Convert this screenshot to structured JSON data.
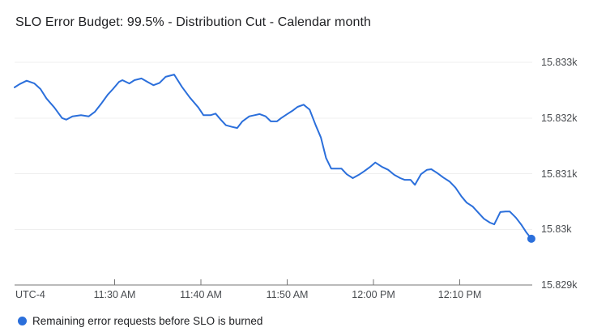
{
  "title": "SLO Error Budget: 99.5% - Distribution Cut - Calendar month",
  "legend": {
    "label": "Remaining error requests before SLO is burned",
    "marker_color": "#2b6fdb"
  },
  "colors": {
    "accent": "#2b6fdb",
    "grid": "#efefef",
    "axis": "#757575",
    "tick_label": "#494c50",
    "title_text": "#202124",
    "background": "#ffffff"
  },
  "chart_data": {
    "type": "line",
    "title": "SLO Error Budget: 99.5% - Distribution Cut - Calendar month",
    "grid": true,
    "legend_position": "bottom-left",
    "x_axis": {
      "corner_label": "UTC-4",
      "unit": "minute_of_day",
      "range": [
        678.4,
        738.4
      ],
      "ticks": [
        {
          "t": 690,
          "label": "11:30 AM"
        },
        {
          "t": 700,
          "label": "11:40 AM"
        },
        {
          "t": 710,
          "label": "11:50 AM"
        },
        {
          "t": 720,
          "label": "12:00 PM"
        },
        {
          "t": 730,
          "label": "12:10 PM"
        }
      ]
    },
    "y_axis": {
      "range": [
        15829,
        15833
      ],
      "ticks": [
        {
          "v": 15833,
          "label": "15.833k"
        },
        {
          "v": 15832,
          "label": "15.832k"
        },
        {
          "v": 15831,
          "label": "15.831k"
        },
        {
          "v": 15830,
          "label": "15.83k"
        },
        {
          "v": 15829,
          "label": "15.829k"
        }
      ]
    },
    "series": [
      {
        "name": "Remaining error requests before SLO is burned",
        "color": "#2b6fdb",
        "end_marker": true,
        "points": [
          [
            678.4,
            15832.55
          ],
          [
            679.0,
            15832.61
          ],
          [
            679.8,
            15832.67
          ],
          [
            680.7,
            15832.62
          ],
          [
            681.4,
            15832.52
          ],
          [
            682.1,
            15832.35
          ],
          [
            683.0,
            15832.19
          ],
          [
            683.9,
            15832.0
          ],
          [
            684.4,
            15831.97
          ],
          [
            685.1,
            15832.03
          ],
          [
            686.1,
            15832.05
          ],
          [
            687.0,
            15832.03
          ],
          [
            687.7,
            15832.11
          ],
          [
            688.5,
            15832.27
          ],
          [
            689.2,
            15832.42
          ],
          [
            689.8,
            15832.52
          ],
          [
            690.5,
            15832.65
          ],
          [
            690.9,
            15832.68
          ],
          [
            691.7,
            15832.62
          ],
          [
            692.3,
            15832.68
          ],
          [
            693.1,
            15832.71
          ],
          [
            693.8,
            15832.65
          ],
          [
            694.5,
            15832.59
          ],
          [
            695.2,
            15832.63
          ],
          [
            695.9,
            15832.74
          ],
          [
            696.9,
            15832.78
          ],
          [
            697.8,
            15832.56
          ],
          [
            698.7,
            15832.37
          ],
          [
            699.7,
            15832.19
          ],
          [
            700.3,
            15832.05
          ],
          [
            701.1,
            15832.05
          ],
          [
            701.7,
            15832.08
          ],
          [
            702.3,
            15831.97
          ],
          [
            702.9,
            15831.87
          ],
          [
            703.6,
            15831.84
          ],
          [
            704.2,
            15831.82
          ],
          [
            704.8,
            15831.94
          ],
          [
            705.6,
            15832.03
          ],
          [
            706.2,
            15832.05
          ],
          [
            706.8,
            15832.07
          ],
          [
            707.5,
            15832.03
          ],
          [
            708.1,
            15831.94
          ],
          [
            708.8,
            15831.94
          ],
          [
            709.3,
            15832.0
          ],
          [
            710.0,
            15832.07
          ],
          [
            710.7,
            15832.14
          ],
          [
            711.2,
            15832.2
          ],
          [
            711.9,
            15832.24
          ],
          [
            712.6,
            15832.15
          ],
          [
            713.3,
            15831.87
          ],
          [
            713.9,
            15831.65
          ],
          [
            714.5,
            15831.28
          ],
          [
            715.1,
            15831.09
          ],
          [
            715.6,
            15831.09
          ],
          [
            716.3,
            15831.09
          ],
          [
            716.9,
            15830.99
          ],
          [
            717.6,
            15830.92
          ],
          [
            718.3,
            15830.98
          ],
          [
            718.9,
            15831.04
          ],
          [
            719.6,
            15831.12
          ],
          [
            720.2,
            15831.2
          ],
          [
            721.0,
            15831.12
          ],
          [
            721.7,
            15831.07
          ],
          [
            722.4,
            15830.98
          ],
          [
            723.1,
            15830.92
          ],
          [
            723.6,
            15830.89
          ],
          [
            724.3,
            15830.89
          ],
          [
            724.8,
            15830.8
          ],
          [
            725.5,
            15830.99
          ],
          [
            726.2,
            15831.07
          ],
          [
            726.7,
            15831.08
          ],
          [
            727.4,
            15831.01
          ],
          [
            728.1,
            15830.93
          ],
          [
            728.8,
            15830.86
          ],
          [
            729.5,
            15830.75
          ],
          [
            730.2,
            15830.59
          ],
          [
            730.8,
            15830.48
          ],
          [
            731.5,
            15830.41
          ],
          [
            732.2,
            15830.29
          ],
          [
            732.8,
            15830.19
          ],
          [
            733.5,
            15830.12
          ],
          [
            734.0,
            15830.09
          ],
          [
            734.7,
            15830.31
          ],
          [
            735.3,
            15830.32
          ],
          [
            735.8,
            15830.32
          ],
          [
            736.5,
            15830.21
          ],
          [
            737.1,
            15830.09
          ],
          [
            737.7,
            15829.95
          ],
          [
            738.3,
            15829.83
          ]
        ]
      }
    ]
  }
}
